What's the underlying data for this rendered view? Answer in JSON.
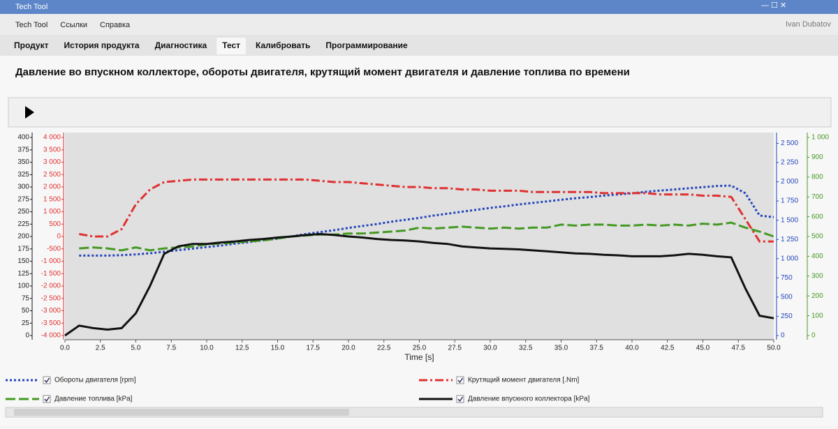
{
  "window": {
    "title": "Tech Tool",
    "user": "Ivan Dubatov"
  },
  "menu": [
    "Tech Tool",
    "Ссылки",
    "Справка"
  ],
  "tabs": [
    "Продукт",
    "История продукта",
    "Диагностика",
    "Тест",
    "Калибровать",
    "Программирование"
  ],
  "selected_tab": 3,
  "chart_data": {
    "type": "line",
    "title": "Давление во впускном коллекторе, обороты двигателя, крутящий момент двигателя и давление топлива по времени",
    "x_label": "Time [s]",
    "x": [
      0,
      1,
      2,
      3,
      4,
      5,
      6,
      7,
      8,
      9,
      10,
      11,
      12,
      13,
      14,
      15,
      16,
      17,
      18,
      19,
      20,
      21,
      22,
      23,
      24,
      25,
      26,
      27,
      28,
      29,
      30,
      31,
      32,
      33,
      34,
      35,
      36,
      37,
      38,
      39,
      40,
      41,
      42,
      43,
      44,
      45,
      46,
      47,
      48,
      49,
      50
    ],
    "xlim": [
      0,
      50
    ],
    "xticks": [
      {
        "value": 0,
        "label": "0.0"
      },
      2.5,
      {
        "value": 5,
        "label": "5.0"
      },
      7.5,
      {
        "value": 10,
        "label": "10.0"
      },
      12.5,
      {
        "value": 15,
        "label": "15.0"
      },
      17.5,
      {
        "value": 20,
        "label": "20.0"
      },
      22.5,
      {
        "value": 25,
        "label": "25.0"
      },
      27.5,
      {
        "value": 30,
        "label": "30.0"
      },
      32.5,
      {
        "value": 35,
        "label": "35.0"
      },
      37.5,
      {
        "value": 40,
        "label": "40.0"
      },
      42.5,
      {
        "value": 45,
        "label": "45.0"
      },
      47.5,
      {
        "value": 50,
        "label": "50.0"
      }
    ],
    "ylim": [
      0,
      410
    ],
    "yticks": [
      0,
      25,
      50,
      75,
      100,
      125,
      150,
      175,
      200,
      225,
      250,
      275,
      300,
      325,
      350,
      375,
      400
    ],
    "y2lim": [
      -4000,
      4200
    ],
    "y2ticks": [
      {
        "value": -4000,
        "label": "-4 000"
      },
      {
        "value": -3500,
        "label": "-3 500"
      },
      {
        "value": -3000,
        "label": "-3 000"
      },
      {
        "value": -2500,
        "label": "-2 500"
      },
      {
        "value": -2000,
        "label": "-2 000"
      },
      {
        "value": -1500,
        "label": "-1 500"
      },
      {
        "value": -1000,
        "label": "-1 000"
      },
      -500,
      0,
      500,
      {
        "value": 1000,
        "label": "1 000"
      },
      {
        "value": 1500,
        "label": "1 500"
      },
      {
        "value": 2000,
        "label": "2 000"
      },
      {
        "value": 2500,
        "label": "2 500"
      },
      {
        "value": 3000,
        "label": "3 000"
      },
      {
        "value": 3500,
        "label": "3 500"
      },
      {
        "value": 4000,
        "label": "4 000"
      }
    ],
    "y2color": "#e03030",
    "y3lim": [
      0,
      2640
    ],
    "y3ticks": [
      0,
      250,
      500,
      750,
      {
        "value": 1000,
        "label": "1 000"
      },
      {
        "value": 1250,
        "label": "1 250"
      },
      {
        "value": 1500,
        "label": "1 500"
      },
      {
        "value": 1750,
        "label": "1 750"
      },
      {
        "value": 2000,
        "label": "2 000"
      },
      {
        "value": 2250,
        "label": "2 250"
      },
      {
        "value": 2500,
        "label": "2 500"
      }
    ],
    "y3color": "#2244bb",
    "y4lim": [
      0,
      1025
    ],
    "y4ticks": [
      0,
      100,
      200,
      300,
      400,
      500,
      600,
      700,
      800,
      900,
      {
        "value": 1000,
        "label": "1 000"
      }
    ],
    "y4color": "#449922",
    "series": [
      {
        "name": "Обороты двигателя [rpm]",
        "color": "#2244bb",
        "style": "dotted",
        "axis": "y3",
        "values": [
          null,
          1040,
          1040,
          1040,
          1045,
          1055,
          1070,
          1090,
          1110,
          1130,
          1150,
          1170,
          1195,
          1215,
          1240,
          1260,
          1290,
          1320,
          1345,
          1370,
          1400,
          1425,
          1450,
          1480,
          1505,
          1530,
          1560,
          1585,
          1610,
          1635,
          1660,
          1680,
          1705,
          1725,
          1745,
          1765,
          1785,
          1800,
          1820,
          1835,
          1850,
          1870,
          1885,
          1900,
          1915,
          1930,
          1945,
          1950,
          1850,
          1560,
          1540
        ]
      },
      {
        "name": "Крутящий момент двигателя [.Nm]",
        "color": "#e03030",
        "style": "dashdot",
        "axis": "y2",
        "values": [
          null,
          100,
          0,
          0,
          300,
          1300,
          1900,
          2200,
          2250,
          2300,
          2300,
          2300,
          2300,
          2300,
          2300,
          2300,
          2300,
          2300,
          2250,
          2200,
          2200,
          2150,
          2100,
          2050,
          2000,
          2000,
          1950,
          1950,
          1900,
          1900,
          1850,
          1850,
          1850,
          1800,
          1800,
          1800,
          1800,
          1800,
          1750,
          1750,
          1750,
          1750,
          1700,
          1700,
          1700,
          1650,
          1650,
          1600,
          700,
          -200,
          -200
        ]
      },
      {
        "name": "Давление топлива [kPa]",
        "color": "#449922",
        "style": "dashed",
        "axis": "y4",
        "values": [
          null,
          440,
          445,
          440,
          430,
          445,
          430,
          440,
          445,
          450,
          460,
          465,
          470,
          475,
          480,
          490,
          500,
          505,
          510,
          510,
          515,
          515,
          520,
          525,
          530,
          545,
          540,
          545,
          550,
          545,
          540,
          545,
          540,
          545,
          545,
          560,
          555,
          560,
          560,
          555,
          555,
          560,
          555,
          560,
          555,
          565,
          560,
          570,
          545,
          525,
          500
        ]
      },
      {
        "name": "Давление впускного коллектора [kPa]",
        "color": "#111111",
        "style": "solid",
        "axis": "y",
        "values": [
          0,
          20,
          15,
          12,
          15,
          45,
          100,
          165,
          180,
          185,
          185,
          188,
          190,
          193,
          195,
          198,
          200,
          203,
          205,
          203,
          200,
          198,
          195,
          193,
          192,
          190,
          187,
          185,
          180,
          178,
          176,
          175,
          174,
          172,
          170,
          168,
          166,
          165,
          163,
          162,
          160,
          160,
          160,
          162,
          165,
          163,
          160,
          158,
          95,
          40,
          35
        ]
      }
    ]
  }
}
